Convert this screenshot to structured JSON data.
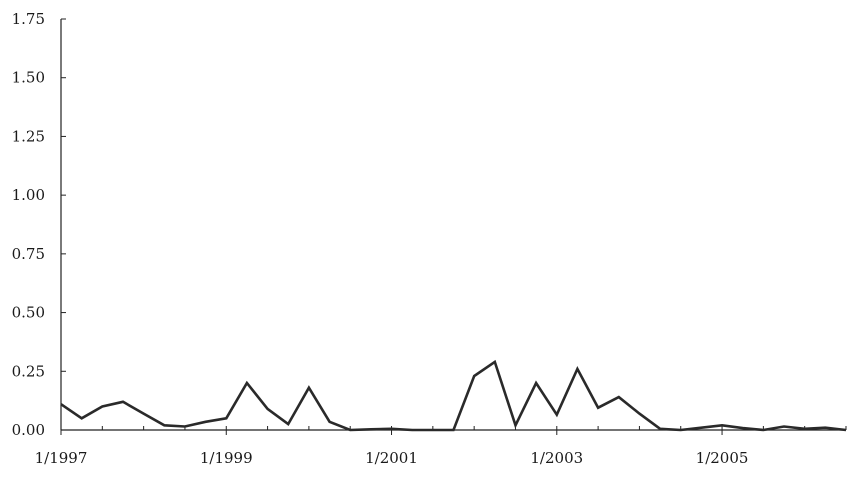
{
  "chart_data": {
    "type": "line",
    "title": "",
    "xlabel": "",
    "ylabel": "",
    "ylim": [
      0,
      1.75
    ],
    "y_ticks": [
      "0.00",
      "0.25",
      "0.50",
      "0.75",
      "1.00",
      "1.25",
      "1.50",
      "1.75"
    ],
    "x_ticks": [
      "1/1997",
      "1/1999",
      "1/2001",
      "1/2003",
      "1/2005"
    ],
    "x_tick_dates": [
      "1997-01",
      "1999-01",
      "2001-01",
      "2003-01",
      "2005-01"
    ],
    "x_range": [
      "1997-01",
      "2006-07"
    ],
    "grid": false,
    "series": [
      {
        "color": "#2a2a2a",
        "x": [
          "1997-01",
          "1997-04",
          "1997-07",
          "1997-10",
          "1998-01",
          "1998-04",
          "1998-07",
          "1998-10",
          "1999-01",
          "1999-04",
          "1999-07",
          "1999-10",
          "2000-01",
          "2000-04",
          "2000-07",
          "2000-10",
          "2001-01",
          "2001-04",
          "2001-07",
          "2001-10",
          "2002-01",
          "2002-04",
          "2002-07",
          "2002-10",
          "2003-01",
          "2003-04",
          "2003-07",
          "2003-10",
          "2004-01",
          "2004-04",
          "2004-07",
          "2004-10",
          "2005-01",
          "2005-04",
          "2005-07",
          "2005-10",
          "2006-01",
          "2006-04",
          "2006-07"
        ],
        "values": [
          0.11,
          0.05,
          0.1,
          0.12,
          0.07,
          0.02,
          0.015,
          0.035,
          0.05,
          0.2,
          0.09,
          0.025,
          0.18,
          0.035,
          0.0,
          0.003,
          0.005,
          0.0,
          0.0,
          0.0,
          0.23,
          0.29,
          0.02,
          0.2,
          0.065,
          0.26,
          0.095,
          0.14,
          0.07,
          0.005,
          0.0,
          0.01,
          0.02,
          0.008,
          0.0,
          0.015,
          0.005,
          0.01,
          0.0
        ]
      }
    ]
  }
}
